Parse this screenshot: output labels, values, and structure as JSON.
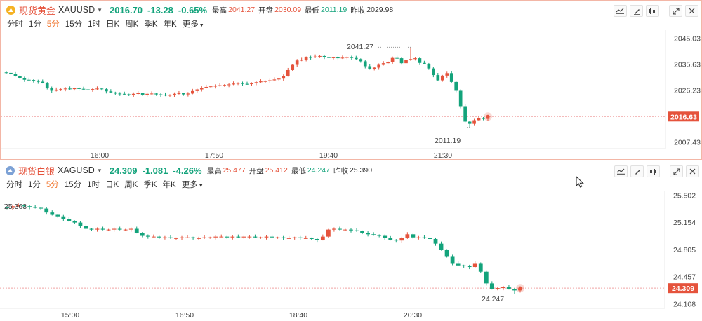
{
  "periods": [
    "分时",
    "1分",
    "5分",
    "15分",
    "1时",
    "日K",
    "周K",
    "季K",
    "年K",
    "更多"
  ],
  "active_period": "5分",
  "stat_labels": {
    "high": "最高",
    "open": "开盘",
    "low": "最低",
    "prev_close": "昨收"
  },
  "colors": {
    "up": "#e5533c",
    "down": "#13a37b",
    "active": "#f0742c",
    "gold_coin": "#f5b223",
    "silver_coin": "#7da2d6"
  },
  "icons": [
    "line-style-icon",
    "draw-pen-icon",
    "indicator-icon",
    "fullscreen-icon",
    "close-icon",
    "coin-icon",
    "mouse-cursor-icon"
  ],
  "gold": {
    "name": "现货黄金",
    "code": "XAUUSD",
    "price": "2016.70",
    "change": "-13.28",
    "change_pct": "-0.65%",
    "high": "2041.27",
    "open": "2030.09",
    "low": "2011.19",
    "prev_close": "2029.98",
    "current_label": "2016.63"
  },
  "silver": {
    "name": "现货白银",
    "code": "XAGUSD",
    "price": "24.309",
    "change": "-1.081",
    "change_pct": "-4.26%",
    "high": "25.477",
    "open": "25.412",
    "low": "24.247",
    "prev_close": "25.390",
    "current_label": "24.309"
  },
  "chart_data": [
    {
      "type": "candlestick",
      "series_of": "XAUUSD",
      "x_ticks": [
        "16:00",
        "17:50",
        "19:40",
        "21:30"
      ],
      "y_ticks": [
        "2045.03",
        "2035.63",
        "2026.23",
        "2016.63",
        "2007.43"
      ],
      "ylim": [
        2005.0,
        2048.0
      ],
      "high_label": "2041.27",
      "low_label": "2011.19",
      "current": 2016.63,
      "closes": [
        2032.5,
        2032.0,
        2031.4,
        2030.6,
        2030.0,
        2029.9,
        2029.5,
        2029.3,
        2028.9,
        2027.0,
        2026.0,
        2026.4,
        2026.6,
        2026.8,
        2026.6,
        2026.9,
        2026.7,
        2026.5,
        2026.4,
        2026.6,
        2026.8,
        2026.6,
        2025.8,
        2025.4,
        2025.0,
        2024.9,
        2024.7,
        2024.6,
        2024.9,
        2025.1,
        2024.6,
        2024.9,
        2025.0,
        2024.7,
        2024.6,
        2024.3,
        2024.5,
        2024.9,
        2025.1,
        2024.7,
        2025.0,
        2025.9,
        2026.5,
        2027.1,
        2027.4,
        2027.6,
        2027.8,
        2028.0,
        2028.1,
        2028.3,
        2028.6,
        2028.8,
        2028.5,
        2028.4,
        2028.8,
        2029.1,
        2029.4,
        2029.5,
        2029.8,
        2030.1,
        2030.4,
        2031.4,
        2033.5,
        2035.4,
        2037.0,
        2037.2,
        2038.2,
        2038.1,
        2038.4,
        2038.6,
        2038.3,
        2037.9,
        2038.1,
        2037.8,
        2038.0,
        2038.2,
        2037.9,
        2037.5,
        2036.7,
        2034.9,
        2033.9,
        2034.4,
        2035.4,
        2036.0,
        2036.5,
        2037.9,
        2037.8,
        2036.0,
        2037.1,
        2037.5,
        2037.8,
        2036.1,
        2035.8,
        2034.1,
        2031.7,
        2029.8,
        2031.5,
        2032.4,
        2029.2,
        2026.0,
        2020.4,
        2014.8,
        2014.0,
        2015.3,
        2016.2,
        2015.8,
        2016.63
      ]
    },
    {
      "type": "candlestick",
      "series_of": "XAGUSD",
      "x_ticks": [
        "15:00",
        "16:50",
        "18:40",
        "20:30"
      ],
      "y_ticks": [
        "25.502",
        "25.154",
        "24.805",
        "24.457",
        "24.309",
        "24.108"
      ],
      "ylim": [
        24.05,
        25.56
      ],
      "high_label": "25.363",
      "low_label": "24.247",
      "current": 24.309,
      "closes": [
        25.34,
        25.36,
        25.37,
        25.36,
        25.35,
        25.34,
        25.33,
        25.28,
        25.25,
        25.23,
        25.2,
        25.17,
        25.15,
        25.11,
        25.07,
        25.06,
        25.07,
        25.06,
        25.06,
        25.07,
        25.06,
        25.06,
        25.07,
        25.02,
        24.98,
        24.97,
        24.97,
        24.96,
        24.96,
        24.95,
        24.95,
        24.96,
        24.96,
        24.95,
        24.95,
        24.96,
        24.96,
        24.97,
        24.97,
        24.96,
        24.97,
        24.96,
        24.97,
        24.97,
        24.96,
        24.96,
        24.97,
        24.96,
        24.96,
        24.95,
        24.95,
        24.96,
        24.95,
        24.95,
        24.94,
        24.93,
        24.97,
        25.06,
        25.07,
        25.06,
        25.06,
        25.05,
        25.04,
        25.02,
        25.0,
        24.99,
        24.98,
        24.95,
        24.93,
        24.92,
        24.95,
        25.0,
        24.96,
        24.96,
        24.95,
        24.94,
        24.88,
        24.8,
        24.72,
        24.63,
        24.6,
        24.59,
        24.58,
        24.63,
        24.52,
        24.37,
        24.3,
        24.31,
        24.32,
        24.3,
        24.28,
        24.309
      ]
    }
  ]
}
